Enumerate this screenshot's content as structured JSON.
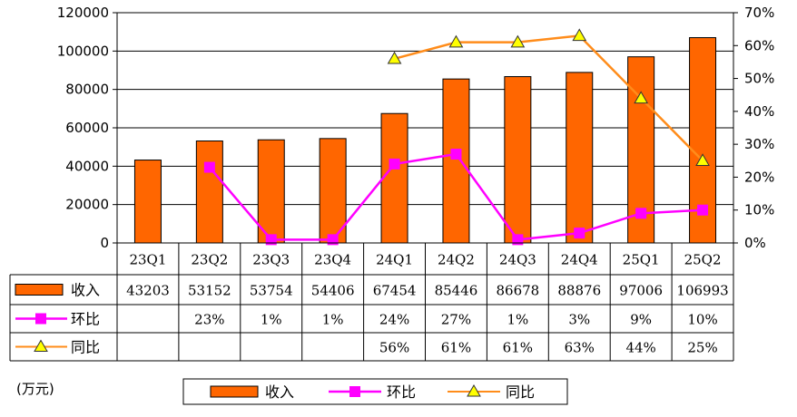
{
  "chart_data": {
    "type": "bar",
    "categories": [
      "23Q1",
      "23Q2",
      "23Q3",
      "23Q4",
      "24Q1",
      "24Q2",
      "24Q3",
      "24Q4",
      "25Q1",
      "25Q2"
    ],
    "unit_label": "(万元)",
    "left_axis": {
      "min": 0,
      "max": 120000,
      "ticks": [
        "0",
        "20000",
        "40000",
        "60000",
        "80000",
        "100000",
        "120000"
      ]
    },
    "right_axis": {
      "min": 0,
      "max": 70,
      "ticks": [
        "0%",
        "10%",
        "20%",
        "30%",
        "40%",
        "50%",
        "60%",
        "70%"
      ]
    },
    "colors": {
      "bar": "#FF6600",
      "qoq": "#FF00FF",
      "yoy": "#FF8C1A",
      "yoy_marker": "#FFFF00"
    },
    "series": [
      {
        "name": "收入",
        "type": "bar",
        "axis": "left",
        "values": [
          43203,
          53152,
          53754,
          54406,
          67454,
          85446,
          86678,
          88876,
          97006,
          106993
        ],
        "labels": [
          "43203",
          "53152",
          "53754",
          "54406",
          "67454",
          "85446",
          "86678",
          "88876",
          "97006",
          "106993"
        ]
      },
      {
        "name": "环比",
        "type": "line",
        "axis": "right",
        "marker": "square",
        "values": [
          null,
          23,
          1,
          1,
          24,
          27,
          1,
          3,
          9,
          10
        ],
        "labels": [
          "",
          "23%",
          "1%",
          "1%",
          "24%",
          "27%",
          "1%",
          "3%",
          "9%",
          "10%"
        ]
      },
      {
        "name": "同比",
        "type": "line",
        "axis": "right",
        "marker": "triangle",
        "values": [
          null,
          null,
          null,
          null,
          56,
          61,
          61,
          63,
          44,
          25
        ],
        "labels": [
          "",
          "",
          "",
          "",
          "56%",
          "61%",
          "61%",
          "63%",
          "44%",
          "25%"
        ]
      }
    ],
    "legend": [
      "收入",
      "环比",
      "同比"
    ]
  }
}
